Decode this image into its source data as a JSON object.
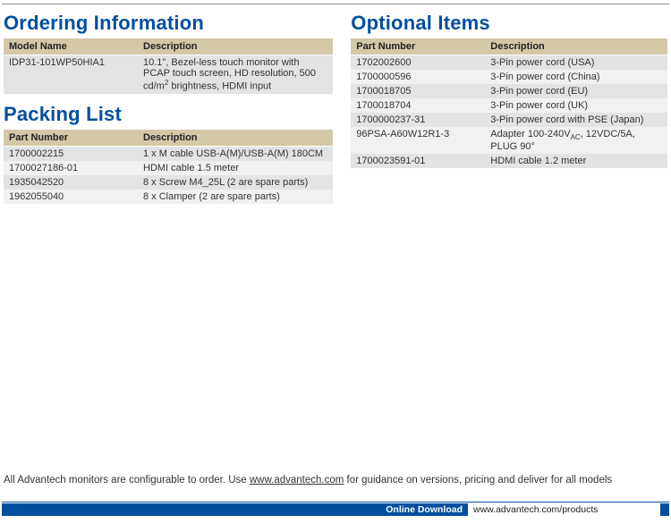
{
  "sections": {
    "ordering": {
      "title": "Ordering Information",
      "columns": [
        "Model Name",
        "Description"
      ],
      "rows": [
        {
          "pn": "IDP31-101WP50HIA1",
          "desc_pre": "10.1\", Bezel-less touch monitor with PCAP touch screen, HD resolution, 500 cd/m",
          "desc_sup": "2",
          "desc_post": " brightness, HDMI input"
        }
      ]
    },
    "packing": {
      "title": "Packing List",
      "columns": [
        "Part Number",
        "Description"
      ],
      "rows": [
        {
          "pn": "1700002215",
          "desc": "1 x M cable USB-A(M)/USB-A(M) 180CM"
        },
        {
          "pn": "1700027186-01",
          "desc": "HDMI cable 1.5 meter"
        },
        {
          "pn": "1935042520",
          "desc": "8 x Screw M4_25L (2 are spare parts)"
        },
        {
          "pn": "1962055040",
          "desc": "8 x Clamper (2 are spare parts)"
        }
      ]
    },
    "optional": {
      "title": "Optional Items",
      "columns": [
        "Part Number",
        "Description"
      ],
      "rows": [
        {
          "pn": "1702002600",
          "desc": "3-Pin power cord (USA)"
        },
        {
          "pn": "1700000596",
          "desc": "3-Pin power cord (China)"
        },
        {
          "pn": "1700018705",
          "desc": "3-Pin power cord (EU)"
        },
        {
          "pn": "1700018704",
          "desc": "3-Pin power cord (UK)"
        },
        {
          "pn": "1700000237-31",
          "desc": "3-Pin power cord with PSE (Japan)"
        },
        {
          "pn": "96PSA-A60W12R1-3",
          "desc_pre": "Adapter 100-240V",
          "desc_sub": "AC",
          "desc_post": ", 12VDC/5A, PLUG 90°"
        },
        {
          "pn": "1700023591-01",
          "desc": "HDMI cable 1.2 meter"
        }
      ]
    }
  },
  "footer_note": {
    "pre": "All Advantech monitors are configurable to order. Use ",
    "link_text": "www.advantech.com",
    "post": " for guidance on versions, pricing and deliver for all models"
  },
  "bottom_bar": {
    "label": "Online Download",
    "url": "www.advantech.com/products"
  },
  "styling": {
    "title_color": "#004f9e",
    "header_bg": "#d3c9a6",
    "row_even_bg": "#e2e3e4",
    "row_odd_bg": "#f1f1f1",
    "text_color": "#333333",
    "body_font_size": 11,
    "title_font_size": 22,
    "bar_bg": "#004f9e",
    "bar_text_color": "#ffffff"
  }
}
